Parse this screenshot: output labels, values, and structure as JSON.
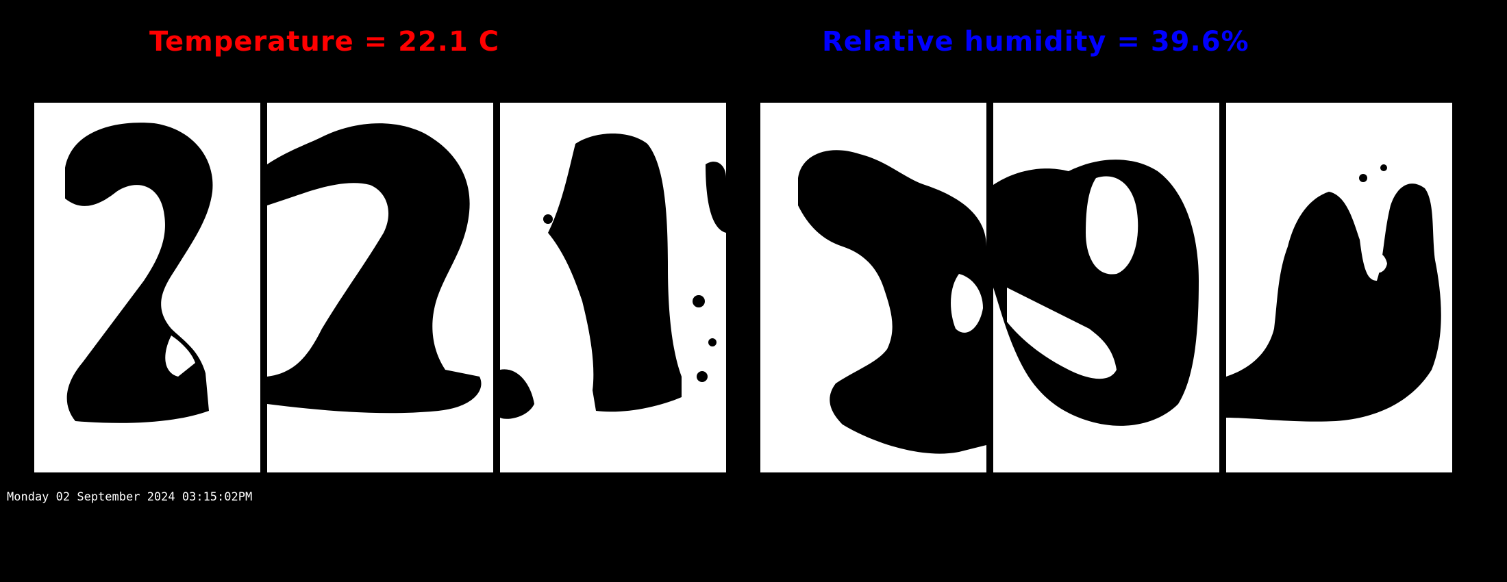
{
  "temperature": {
    "label": "Temperature = 22.1 C",
    "color": "#ff0000",
    "digits": [
      "2",
      "2",
      "1"
    ]
  },
  "humidity": {
    "label": "Relative humidity = 39.6%",
    "color": "#0000ff",
    "digits": [
      "3",
      "9",
      "6"
    ]
  },
  "timestamp": "Monday 02 September 2024 03:15:02PM",
  "colors": {
    "background": "#000000",
    "panel": "#ffffff",
    "digit_ink": "#000000"
  }
}
